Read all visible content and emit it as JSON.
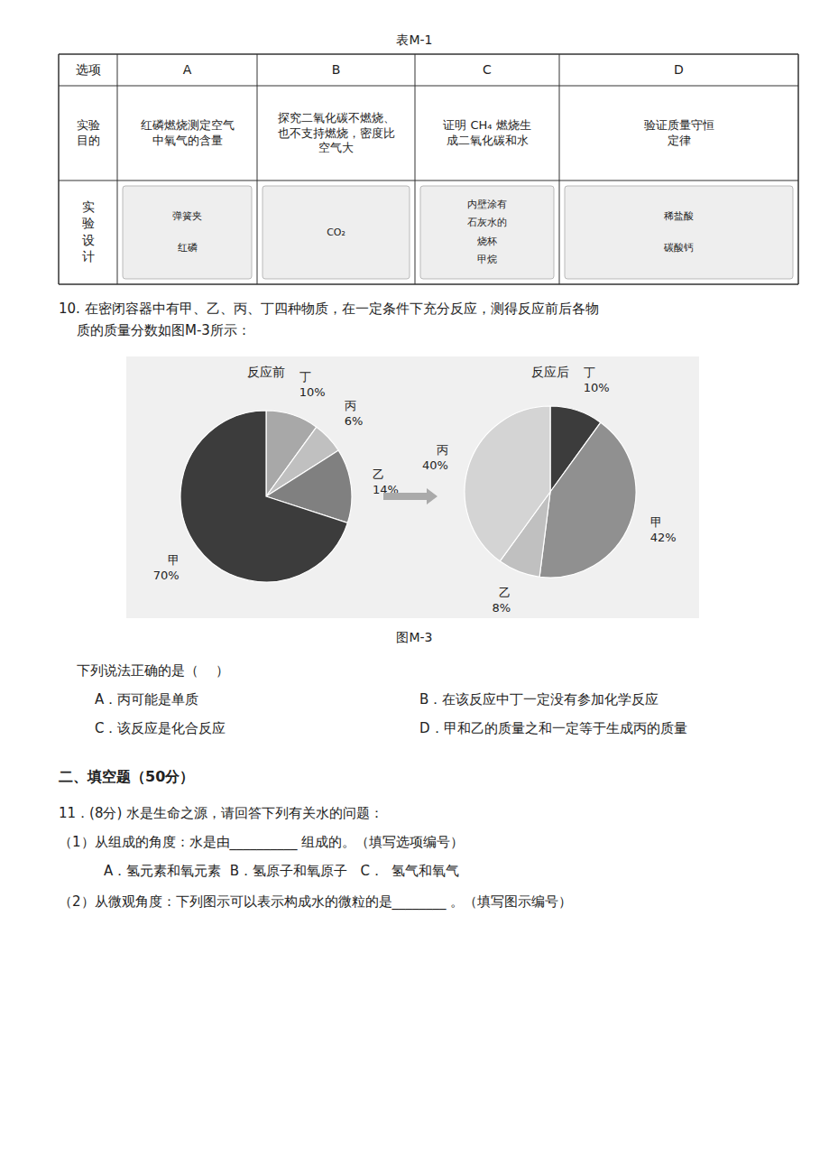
{
  "chart_data": [
    {
      "type": "pie",
      "title": "反应前",
      "categories": [
        "丁",
        "丙",
        "乙",
        "甲"
      ],
      "values": [
        10,
        6,
        14,
        70
      ],
      "value_labels": [
        "10%",
        "6%",
        "14%",
        "70%"
      ],
      "colors": [
        "#a8a8a8",
        "#c0c0c0",
        "#808080",
        "#3c3c3c"
      ],
      "data_labels": true
    },
    {
      "type": "pie",
      "title": "反应后",
      "categories": [
        "丁",
        "甲",
        "乙",
        "丙"
      ],
      "values": [
        10,
        42,
        8,
        40
      ],
      "value_labels": [
        "10%",
        "42%",
        "8%",
        "40%"
      ],
      "colors": [
        "#3c3c3c",
        "#909090",
        "#c0c0c0",
        "#d4d4d4"
      ],
      "data_labels": true
    }
  ],
  "page": {
    "table_title": "表M-1",
    "table_headers": [
      "选项",
      "A",
      "B",
      "C",
      "D"
    ],
    "row1_texts": [
      "实验\n目的",
      "红磷燃烧测定空气\n中氧气的含量",
      "探究二氧化碳不燃烧、\n也不支持燃烧，密度比\n空气大",
      "证明 CH₄ 燃烧生\n成二氧化碳和水",
      "验证质量守恒\n定律"
    ],
    "row2_label": "实\n验\n设\n计",
    "diagram_labels": [
      [
        "弹簧夹",
        "红磷"
      ],
      [
        "CO₂"
      ],
      [
        "内壁涂有",
        "石灰水的",
        "烧杯",
        "甲烷"
      ],
      [
        "稀盐酸",
        "碳酸钙"
      ]
    ],
    "q10_lines": [
      "10. 在密闭容器中有甲、乙、丙、丁四种物质，在一定条件下充分反应，测得反应前后各物",
      "质的质量分数如图M-3所示："
    ],
    "fig_caption": "图M-3",
    "q10_intro": "下列说法正确的是（    ）",
    "q10_options": [
      "A．丙可能是单质",
      "B．在该反应中丁一定没有参加化学反应",
      "C．该反应是化合反应",
      "D．甲和乙的质量之和一定等于生成丙的质量"
    ],
    "sec2_title": "二、填空题（50分）",
    "q11_lines": [
      "11．(8分) 水是生命之源，请回答下列有关水的问题：",
      "（1）从组成的角度：水是由__________ 组成的。（填写选项编号）",
      "　　A．氢元素和氧元素  B．氢原子和氧原子   C．  氢气和氧气",
      "（2）从微观角度：下列图示可以表示构成水的微粒的是________ 。（填写图示编号）"
    ]
  }
}
